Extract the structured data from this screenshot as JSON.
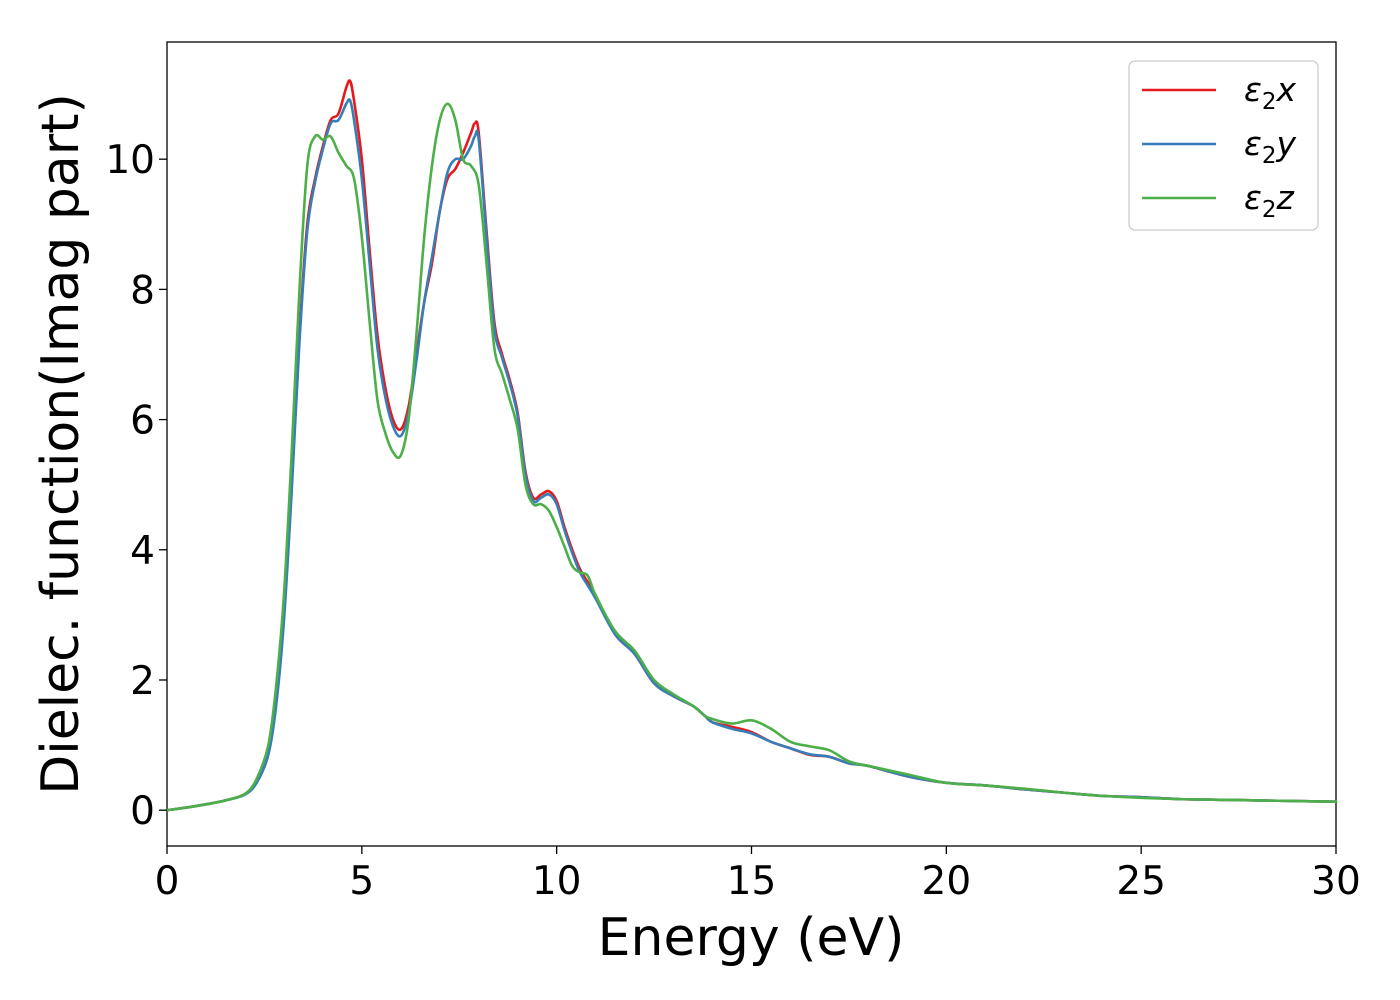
{
  "chart_data": {
    "type": "line",
    "xlabel": "Energy (eV)",
    "ylabel": "Dielec. function(Imag part)",
    "xlim": [
      0,
      30
    ],
    "ylim": [
      -0.55,
      11.8
    ],
    "xticks": [
      0,
      5,
      10,
      15,
      20,
      25,
      30
    ],
    "yticks": [
      0,
      2,
      4,
      6,
      8,
      10
    ],
    "grid": false,
    "legend_position": "top-right",
    "series": [
      {
        "name": "ε₂x",
        "legend_base": "ε",
        "legend_sub": "2",
        "legend_suffix": "x",
        "color": "#e41a1c",
        "x": [
          0,
          0.5,
          1,
          1.5,
          2,
          2.3,
          2.6,
          2.8,
          3.0,
          3.2,
          3.4,
          3.6,
          3.8,
          4.0,
          4.2,
          4.4,
          4.6,
          4.7,
          4.8,
          5.0,
          5.2,
          5.4,
          5.6,
          5.8,
          6.0,
          6.2,
          6.4,
          6.6,
          6.8,
          7.0,
          7.2,
          7.4,
          7.6,
          7.8,
          7.9,
          8.0,
          8.2,
          8.4,
          8.6,
          8.8,
          9.0,
          9.2,
          9.4,
          9.6,
          9.8,
          10.0,
          10.2,
          10.4,
          10.6,
          10.8,
          11.0,
          11.5,
          12.0,
          12.5,
          13.0,
          13.5,
          13.8,
          14.0,
          14.5,
          15.0,
          15.5,
          16.0,
          16.5,
          17.0,
          17.5,
          18.0,
          19.0,
          20.0,
          21.0,
          22.0,
          23.0,
          24.0,
          25.0,
          26.0,
          27.0,
          28.0,
          29.0,
          30.0
        ],
        "y": [
          0.0,
          0.04,
          0.09,
          0.15,
          0.25,
          0.45,
          0.9,
          1.7,
          3.0,
          5.0,
          7.3,
          9.0,
          9.7,
          10.2,
          10.6,
          10.7,
          11.1,
          11.2,
          10.9,
          10.0,
          8.6,
          7.3,
          6.5,
          6.0,
          5.85,
          6.2,
          7.0,
          7.8,
          8.4,
          9.2,
          9.7,
          9.85,
          10.1,
          10.4,
          10.55,
          10.4,
          8.9,
          7.5,
          7.0,
          6.6,
          6.1,
          5.2,
          4.8,
          4.85,
          4.9,
          4.75,
          4.35,
          4.0,
          3.7,
          3.5,
          3.3,
          2.7,
          2.4,
          1.95,
          1.75,
          1.6,
          1.45,
          1.35,
          1.28,
          1.2,
          1.05,
          0.95,
          0.85,
          0.82,
          0.72,
          0.68,
          0.52,
          0.42,
          0.38,
          0.32,
          0.27,
          0.22,
          0.2,
          0.17,
          0.16,
          0.15,
          0.14,
          0.13
        ]
      },
      {
        "name": "ε₂y",
        "legend_base": "ε",
        "legend_sub": "2",
        "legend_suffix": "y",
        "color": "#377eb8",
        "x": [
          0,
          0.5,
          1,
          1.5,
          2,
          2.3,
          2.6,
          2.8,
          3.0,
          3.2,
          3.4,
          3.6,
          3.8,
          4.0,
          4.2,
          4.4,
          4.6,
          4.7,
          4.8,
          5.0,
          5.2,
          5.4,
          5.6,
          5.8,
          6.0,
          6.2,
          6.4,
          6.6,
          6.8,
          7.0,
          7.2,
          7.4,
          7.6,
          7.8,
          7.9,
          8.0,
          8.2,
          8.4,
          8.6,
          8.8,
          9.0,
          9.2,
          9.4,
          9.6,
          9.8,
          10.0,
          10.2,
          10.4,
          10.6,
          10.8,
          11.0,
          11.5,
          12.0,
          12.5,
          13.0,
          13.5,
          13.8,
          14.0,
          14.5,
          15.0,
          15.5,
          16.0,
          16.5,
          17.0,
          17.5,
          18.0,
          19.0,
          20.0,
          21.0,
          22.0,
          23.0,
          24.0,
          25.0,
          26.0,
          27.0,
          28.0,
          29.0,
          30.0
        ],
        "y": [
          0.0,
          0.04,
          0.09,
          0.15,
          0.24,
          0.42,
          0.85,
          1.6,
          2.9,
          4.9,
          7.2,
          8.9,
          9.65,
          10.15,
          10.55,
          10.6,
          10.85,
          10.9,
          10.6,
          9.7,
          8.4,
          7.1,
          6.35,
          5.9,
          5.75,
          6.1,
          6.9,
          7.8,
          8.5,
          9.2,
          9.8,
          10.0,
          10.0,
          10.2,
          10.35,
          10.3,
          8.8,
          7.4,
          6.95,
          6.55,
          6.05,
          5.15,
          4.75,
          4.8,
          4.85,
          4.7,
          4.3,
          3.95,
          3.65,
          3.45,
          3.25,
          2.7,
          2.4,
          1.95,
          1.75,
          1.6,
          1.45,
          1.35,
          1.25,
          1.18,
          1.05,
          0.95,
          0.86,
          0.82,
          0.72,
          0.68,
          0.52,
          0.42,
          0.38,
          0.32,
          0.27,
          0.22,
          0.2,
          0.17,
          0.16,
          0.15,
          0.14,
          0.13
        ]
      },
      {
        "name": "ε₂z",
        "legend_base": "ε",
        "legend_sub": "2",
        "legend_suffix": "z",
        "color": "#4daf4a",
        "x": [
          0,
          0.5,
          1,
          1.5,
          2,
          2.3,
          2.6,
          2.8,
          3.0,
          3.2,
          3.4,
          3.6,
          3.8,
          4.0,
          4.2,
          4.4,
          4.6,
          4.8,
          5.0,
          5.2,
          5.4,
          5.6,
          5.8,
          6.0,
          6.2,
          6.4,
          6.6,
          6.8,
          7.0,
          7.2,
          7.4,
          7.6,
          7.8,
          8.0,
          8.2,
          8.4,
          8.6,
          8.8,
          9.0,
          9.2,
          9.4,
          9.6,
          9.8,
          10.0,
          10.2,
          10.4,
          10.6,
          10.8,
          11.0,
          11.5,
          12.0,
          12.5,
          13.0,
          13.5,
          13.8,
          14.0,
          14.5,
          15.0,
          15.5,
          16.0,
          16.5,
          17.0,
          17.5,
          18.0,
          19.0,
          20.0,
          21.0,
          22.0,
          23.0,
          24.0,
          25.0,
          26.0,
          27.0,
          28.0,
          29.0,
          30.0
        ],
        "y": [
          0.0,
          0.04,
          0.09,
          0.15,
          0.25,
          0.48,
          1.0,
          1.9,
          3.3,
          5.5,
          8.0,
          9.9,
          10.35,
          10.3,
          10.35,
          10.1,
          9.9,
          9.7,
          8.8,
          7.5,
          6.3,
          5.8,
          5.5,
          5.45,
          6.0,
          7.3,
          8.8,
          9.9,
          10.6,
          10.85,
          10.6,
          10.0,
          9.9,
          9.6,
          8.4,
          7.1,
          6.7,
          6.3,
          5.85,
          5.0,
          4.7,
          4.7,
          4.6,
          4.35,
          4.05,
          3.75,
          3.65,
          3.6,
          3.3,
          2.75,
          2.45,
          2.0,
          1.78,
          1.6,
          1.45,
          1.4,
          1.33,
          1.38,
          1.25,
          1.05,
          0.98,
          0.92,
          0.75,
          0.68,
          0.55,
          0.42,
          0.38,
          0.33,
          0.27,
          0.22,
          0.19,
          0.17,
          0.16,
          0.15,
          0.14,
          0.13
        ]
      }
    ]
  }
}
